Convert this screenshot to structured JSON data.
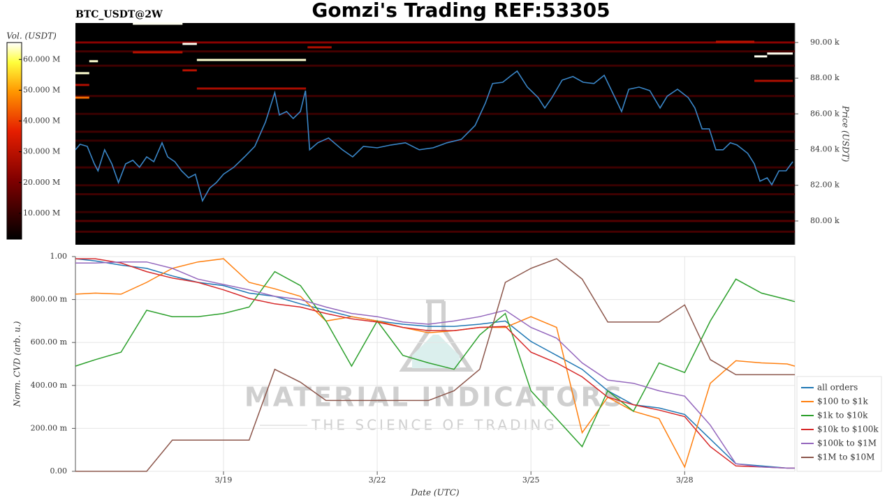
{
  "chart_data": [
    {
      "type": "line",
      "title": "Gomzi's Trading REF:53305",
      "subtitle": "BTC_USDT@2W",
      "y_label": "Price (USDT)",
      "color": "#3a86c8",
      "xlim": [
        16.11,
        30.15
      ],
      "ylim": [
        78670,
        91090
      ],
      "yticks": [
        {
          "value": 80000,
          "label": "80.00 k"
        },
        {
          "value": 82000,
          "label": "82.00 k"
        },
        {
          "value": 84000,
          "label": "84.00 k"
        },
        {
          "value": 86000,
          "label": "86.00 k"
        },
        {
          "value": 88000,
          "label": "88.00 k"
        },
        {
          "value": 90000,
          "label": "90.00 k"
        }
      ],
      "x": [
        16.11,
        16.2,
        16.34,
        16.48,
        16.55,
        16.68,
        16.82,
        16.95,
        17.09,
        17.23,
        17.36,
        17.5,
        17.64,
        17.8,
        17.91,
        18.05,
        18.18,
        18.32,
        18.45,
        18.59,
        18.73,
        18.86,
        19.0,
        19.2,
        19.41,
        19.61,
        19.82,
        20.0,
        20.09,
        20.23,
        20.36,
        20.5,
        20.6,
        20.68,
        20.84,
        21.05,
        21.32,
        21.52,
        21.73,
        22.0,
        22.27,
        22.55,
        22.82,
        23.09,
        23.36,
        23.64,
        23.91,
        24.11,
        24.25,
        24.45,
        24.59,
        24.73,
        24.93,
        25.14,
        25.27,
        25.41,
        25.61,
        25.82,
        26.02,
        26.23,
        26.43,
        26.64,
        26.77,
        26.91,
        27.11,
        27.32,
        27.52,
        27.66,
        27.86,
        28.07,
        28.2,
        28.34,
        28.48,
        28.61,
        28.75,
        28.89,
        29.02,
        29.23,
        29.36,
        29.47,
        29.61,
        29.7,
        29.84,
        29.98,
        30.11
      ],
      "values": [
        83990,
        84300,
        84180,
        83200,
        82810,
        83990,
        83200,
        82150,
        83200,
        83400,
        83010,
        83590,
        83320,
        84380,
        83590,
        83320,
        82810,
        82420,
        82620,
        81130,
        81840,
        82150,
        82620,
        83010,
        83590,
        84180,
        85550,
        87190,
        85940,
        86130,
        85740,
        86130,
        87300,
        83990,
        84380,
        84650,
        83990,
        83590,
        84180,
        84100,
        84260,
        84380,
        83990,
        84100,
        84380,
        84570,
        85350,
        86600,
        87700,
        87770,
        88090,
        88400,
        87500,
        86910,
        86330,
        86910,
        87890,
        88090,
        87770,
        87700,
        88160,
        86910,
        86130,
        87380,
        87500,
        87300,
        86330,
        86990,
        87380,
        86910,
        86330,
        85160,
        85160,
        83990,
        83990,
        84380,
        84260,
        83790,
        83200,
        82230,
        82420,
        82030,
        82810,
        82810,
        83320
      ],
      "heatmap": {
        "colorbar_label": "Vol. (USDT)",
        "clim": [
          1600000,
          65500000
        ],
        "cticks": [
          {
            "value": 10000000,
            "label": "10.000 M"
          },
          {
            "value": 20000000,
            "label": "20.000 M"
          },
          {
            "value": 30000000,
            "label": "30.000 M"
          },
          {
            "value": 40000000,
            "label": "40.000 M"
          },
          {
            "value": 50000000,
            "label": "50.000 M"
          },
          {
            "value": 60000000,
            "label": "60.000 M"
          }
        ],
        "levels": [
          {
            "price": 89500,
            "x0": 16.11,
            "x1": 30.15,
            "volume": 12000000
          },
          {
            "price": 88700,
            "x0": 16.11,
            "x1": 30.15,
            "volume": 11000000
          },
          {
            "price": 87000,
            "x0": 16.11,
            "x1": 30.15,
            "volume": 11000000
          },
          {
            "price": 86000,
            "x0": 16.11,
            "x1": 30.15,
            "volume": 10000000
          },
          {
            "price": 85000,
            "x0": 16.11,
            "x1": 30.15,
            "volume": 11000000
          },
          {
            "price": 84500,
            "x0": 16.11,
            "x1": 30.15,
            "volume": 10000000
          },
          {
            "price": 83000,
            "x0": 16.11,
            "x1": 30.15,
            "volume": 11000000
          },
          {
            "price": 82000,
            "x0": 16.11,
            "x1": 30.15,
            "volume": 10000000
          },
          {
            "price": 81500,
            "x0": 16.11,
            "x1": 30.15,
            "volume": 11000000
          },
          {
            "price": 80500,
            "x0": 16.11,
            "x1": 30.15,
            "volume": 10000000
          },
          {
            "price": 80000,
            "x0": 16.11,
            "x1": 30.15,
            "volume": 14000000
          },
          {
            "price": 79400,
            "x0": 16.11,
            "x1": 30.15,
            "volume": 12000000
          },
          {
            "price": 90000,
            "x0": 16.11,
            "x1": 30.15,
            "volume": 22000000
          },
          {
            "price": 89450,
            "x0": 17.23,
            "x1": 18.2,
            "volume": 30000000
          },
          {
            "price": 89730,
            "x0": 20.64,
            "x1": 21.11,
            "volume": 28000000
          },
          {
            "price": 88440,
            "x0": 18.2,
            "x1": 18.48,
            "volume": 30000000
          },
          {
            "price": 87420,
            "x0": 18.48,
            "x1": 20.61,
            "volume": 27000000
          },
          {
            "price": 87850,
            "x0": 29.36,
            "x1": 30.11,
            "volume": 28000000
          },
          {
            "price": 90040,
            "x0": 28.61,
            "x1": 29.36,
            "volume": 30000000
          },
          {
            "price": 87620,
            "x0": 16.11,
            "x1": 16.38,
            "volume": 28000000
          },
          {
            "price": 86910,
            "x0": 16.11,
            "x1": 16.38,
            "volume": 45000000
          },
          {
            "price": 91050,
            "x0": 17.23,
            "x1": 18.2,
            "volume": 65000000
          },
          {
            "price": 89920,
            "x0": 18.2,
            "x1": 18.48,
            "volume": 65000000
          },
          {
            "price": 89020,
            "x0": 18.48,
            "x1": 20.61,
            "volume": 64000000
          },
          {
            "price": 88280,
            "x0": 16.11,
            "x1": 16.38,
            "volume": 64000000
          },
          {
            "price": 88950,
            "x0": 16.38,
            "x1": 16.55,
            "volume": 64000000
          },
          {
            "price": 89220,
            "x0": 29.36,
            "x1": 29.61,
            "volume": 65000000
          },
          {
            "price": 89380,
            "x0": 29.61,
            "x1": 30.11,
            "volume": 65000000
          }
        ]
      }
    },
    {
      "type": "line",
      "x_label": "Date (UTC)",
      "y_label": "Norm. CVD (arb. u.)",
      "grid": true,
      "legend": "right",
      "watermark": {
        "title": "MATERIAL INDICATORS",
        "subtitle": "THE SCIENCE OF TRADING"
      },
      "xlim": [
        16.11,
        30.15
      ],
      "ylim": [
        0,
        1
      ],
      "xticks": [
        {
          "value": 19,
          "label": "3/19"
        },
        {
          "value": 22,
          "label": "3/22"
        },
        {
          "value": 25,
          "label": "3/25"
        },
        {
          "value": 28,
          "label": "3/28"
        }
      ],
      "yticks": [
        {
          "value": 0,
          "label": "0.00"
        },
        {
          "value": 0.2,
          "label": "200.00 m"
        },
        {
          "value": 0.4,
          "label": "400.00 m"
        },
        {
          "value": 0.6,
          "label": "600.00 m"
        },
        {
          "value": 0.8,
          "label": "800.00 m"
        },
        {
          "value": 1,
          "label": "1.00"
        }
      ],
      "x": [
        16.11,
        16.5,
        17,
        17.5,
        18,
        18.5,
        19,
        19.5,
        20,
        20.5,
        21,
        21.5,
        22,
        22.5,
        23,
        23.5,
        24,
        24.5,
        25,
        25.5,
        26,
        26.5,
        27,
        27.5,
        28,
        28.5,
        29,
        29.5,
        30,
        30.15
      ],
      "series": [
        {
          "name": "all orders",
          "color": "#1f77b4",
          "values": [
            0.99,
            0.98,
            0.96,
            0.945,
            0.91,
            0.88,
            0.865,
            0.83,
            0.815,
            0.78,
            0.75,
            0.72,
            0.7,
            0.685,
            0.675,
            0.675,
            0.685,
            0.7,
            0.605,
            0.54,
            0.475,
            0.375,
            0.31,
            0.295,
            0.265,
            0.15,
            0.035,
            0.025,
            0.015,
            0.015
          ]
        },
        {
          "name": "$100 to $1k",
          "color": "#ff7f0e",
          "values": [
            0.825,
            0.83,
            0.825,
            0.88,
            0.945,
            0.975,
            0.99,
            0.88,
            0.85,
            0.815,
            0.7,
            0.72,
            0.7,
            0.67,
            0.645,
            0.655,
            0.67,
            0.67,
            0.72,
            0.67,
            0.18,
            0.345,
            0.28,
            0.245,
            0.02,
            0.41,
            0.515,
            0.505,
            0.5,
            0.49
          ]
        },
        {
          "name": "$1k to $10k",
          "color": "#2ca02c",
          "values": [
            0.49,
            0.52,
            0.555,
            0.75,
            0.72,
            0.72,
            0.735,
            0.765,
            0.93,
            0.865,
            0.7,
            0.49,
            0.7,
            0.54,
            0.505,
            0.475,
            0.635,
            0.735,
            0.375,
            0.245,
            0.115,
            0.375,
            0.28,
            0.505,
            0.46,
            0.7,
            0.895,
            0.83,
            0.8,
            0.79
          ]
        },
        {
          "name": "$10k to $100k",
          "color": "#d62728",
          "values": [
            0.99,
            0.99,
            0.97,
            0.93,
            0.9,
            0.88,
            0.845,
            0.805,
            0.78,
            0.765,
            0.735,
            0.71,
            0.695,
            0.67,
            0.655,
            0.655,
            0.67,
            0.675,
            0.555,
            0.505,
            0.44,
            0.345,
            0.31,
            0.285,
            0.255,
            0.115,
            0.025,
            0.02,
            0.015,
            0.015
          ]
        },
        {
          "name": "$100k to $1M",
          "color": "#9467bd",
          "values": [
            0.97,
            0.97,
            0.975,
            0.975,
            0.945,
            0.895,
            0.87,
            0.845,
            0.815,
            0.8,
            0.765,
            0.735,
            0.72,
            0.695,
            0.685,
            0.7,
            0.72,
            0.75,
            0.67,
            0.62,
            0.505,
            0.425,
            0.41,
            0.375,
            0.35,
            0.215,
            0.035,
            0.02,
            0.015,
            0.015
          ]
        },
        {
          "name": "$1M to $10M",
          "color": "#8c564b",
          "values": [
            0,
            0,
            0,
            0,
            0.145,
            0.145,
            0.145,
            0.145,
            0.475,
            0.415,
            0.33,
            0.33,
            0.33,
            0.33,
            0.33,
            0.375,
            0.475,
            0.88,
            0.945,
            0.99,
            0.895,
            0.695,
            0.695,
            0.695,
            0.775,
            0.52,
            0.45,
            0.45,
            0.45,
            0.45
          ]
        }
      ]
    }
  ]
}
